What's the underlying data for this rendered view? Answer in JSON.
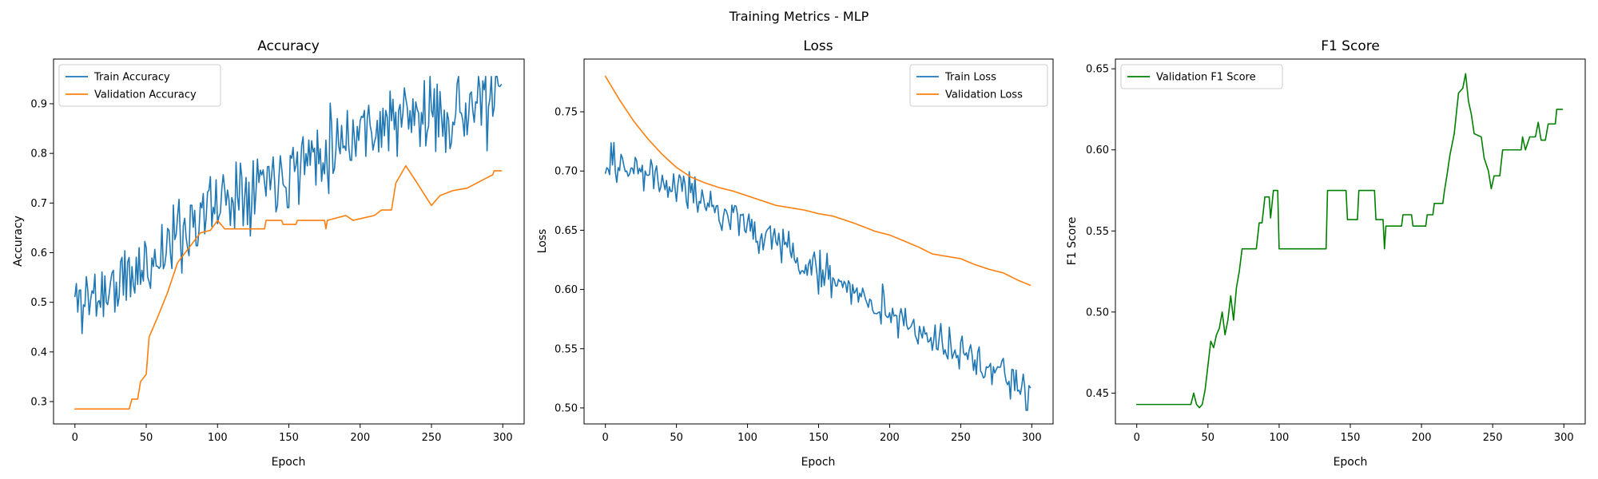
{
  "figure": {
    "suptitle": "Training Metrics - MLP"
  },
  "chart_data": [
    {
      "type": "line",
      "title": "Accuracy",
      "xlabel": "Epoch",
      "ylabel": "Accuracy",
      "xlim": [
        -15,
        315
      ],
      "ylim": [
        0.255,
        0.99
      ],
      "xticks": [
        0,
        50,
        100,
        150,
        200,
        250,
        300
      ],
      "yticks": [
        0.3,
        0.4,
        0.5,
        0.6,
        0.7,
        0.8,
        0.9
      ],
      "ytick_decimals": 1,
      "legend": "top-left",
      "grid": false,
      "series": [
        {
          "name": "Train Accuracy",
          "color": "#1f77b4",
          "noise": 0.055,
          "seed": 11,
          "min": 0.43,
          "max": 0.955,
          "anchors": [
            [
              0,
              0.5
            ],
            [
              20,
              0.52
            ],
            [
              40,
              0.55
            ],
            [
              60,
              0.6
            ],
            [
              80,
              0.66
            ],
            [
              100,
              0.7
            ],
            [
              120,
              0.74
            ],
            [
              150,
              0.77
            ],
            [
              180,
              0.82
            ],
            [
              200,
              0.85
            ],
            [
              230,
              0.87
            ],
            [
              260,
              0.88
            ],
            [
              300,
              0.91
            ]
          ]
        },
        {
          "name": "Validation Accuracy",
          "color": "#ff7f0e",
          "noise": 0,
          "anchors": [
            [
              0,
              0.285
            ],
            [
              38,
              0.285
            ],
            [
              40,
              0.305
            ],
            [
              44,
              0.305
            ],
            [
              46,
              0.34
            ],
            [
              50,
              0.355
            ],
            [
              52,
              0.43
            ],
            [
              58,
              0.47
            ],
            [
              65,
              0.52
            ],
            [
              72,
              0.58
            ],
            [
              80,
              0.61
            ],
            [
              88,
              0.64
            ],
            [
              95,
              0.645
            ],
            [
              100,
              0.665
            ],
            [
              105,
              0.648
            ],
            [
              133,
              0.648
            ],
            [
              134,
              0.665
            ],
            [
              145,
              0.665
            ],
            [
              146,
              0.657
            ],
            [
              155,
              0.657
            ],
            [
              156,
              0.665
            ],
            [
              175,
              0.665
            ],
            [
              176,
              0.648
            ],
            [
              177,
              0.665
            ],
            [
              190,
              0.675
            ],
            [
              195,
              0.665
            ],
            [
              210,
              0.675
            ],
            [
              215,
              0.686
            ],
            [
              222,
              0.686
            ],
            [
              225,
              0.74
            ],
            [
              232,
              0.775
            ],
            [
              240,
              0.74
            ],
            [
              250,
              0.695
            ],
            [
              256,
              0.715
            ],
            [
              265,
              0.725
            ],
            [
              275,
              0.73
            ],
            [
              285,
              0.745
            ],
            [
              293,
              0.757
            ],
            [
              294,
              0.765
            ],
            [
              299,
              0.765
            ]
          ]
        }
      ]
    },
    {
      "type": "line",
      "title": "Loss",
      "xlabel": "Epoch",
      "ylabel": "Loss",
      "xlim": [
        -15,
        315
      ],
      "ylim": [
        0.4865,
        0.7945
      ],
      "xticks": [
        0,
        50,
        100,
        150,
        200,
        250,
        300
      ],
      "yticks": [
        0.5,
        0.55,
        0.6,
        0.65,
        0.7,
        0.75
      ],
      "ytick_decimals": 2,
      "legend": "top-right",
      "grid": false,
      "series": [
        {
          "name": "Train Loss",
          "color": "#1f77b4",
          "noise": 0.012,
          "seed": 29,
          "min": 0.498,
          "max": 0.724,
          "anchors": [
            [
              0,
              0.712
            ],
            [
              25,
              0.7
            ],
            [
              50,
              0.685
            ],
            [
              75,
              0.67
            ],
            [
              100,
              0.655
            ],
            [
              125,
              0.635
            ],
            [
              150,
              0.615
            ],
            [
              175,
              0.6
            ],
            [
              200,
              0.58
            ],
            [
              225,
              0.56
            ],
            [
              250,
              0.545
            ],
            [
              275,
              0.53
            ],
            [
              300,
              0.51
            ]
          ]
        },
        {
          "name": "Validation Loss",
          "color": "#ff7f0e",
          "noise": 0,
          "anchors": [
            [
              0,
              0.78
            ],
            [
              10,
              0.76
            ],
            [
              20,
              0.742
            ],
            [
              30,
              0.727
            ],
            [
              40,
              0.714
            ],
            [
              50,
              0.703
            ],
            [
              60,
              0.695
            ],
            [
              70,
              0.69
            ],
            [
              80,
              0.686
            ],
            [
              90,
              0.683
            ],
            [
              100,
              0.679
            ],
            [
              110,
              0.675
            ],
            [
              120,
              0.671
            ],
            [
              130,
              0.669
            ],
            [
              140,
              0.667
            ],
            [
              150,
              0.664
            ],
            [
              160,
              0.662
            ],
            [
              175,
              0.656
            ],
            [
              190,
              0.649
            ],
            [
              200,
              0.646
            ],
            [
              210,
              0.641
            ],
            [
              220,
              0.636
            ],
            [
              230,
              0.63
            ],
            [
              240,
              0.628
            ],
            [
              250,
              0.626
            ],
            [
              260,
              0.621
            ],
            [
              270,
              0.617
            ],
            [
              280,
              0.614
            ],
            [
              290,
              0.608
            ],
            [
              300,
              0.603
            ]
          ]
        }
      ]
    },
    {
      "type": "line",
      "title": "F1 Score",
      "xlabel": "Epoch",
      "ylabel": "F1 Score",
      "xlim": [
        -15,
        315
      ],
      "ylim": [
        0.431,
        0.656
      ],
      "xticks": [
        0,
        50,
        100,
        150,
        200,
        250,
        300
      ],
      "yticks": [
        0.45,
        0.5,
        0.55,
        0.6,
        0.65
      ],
      "ytick_decimals": 2,
      "legend": "top-left",
      "grid": false,
      "series": [
        {
          "name": "Validation F1 Score",
          "color": "#008000",
          "noise": 0,
          "anchors": [
            [
              0,
              0.443
            ],
            [
              38,
              0.443
            ],
            [
              40,
              0.45
            ],
            [
              42,
              0.443
            ],
            [
              44,
              0.441
            ],
            [
              46,
              0.443
            ],
            [
              48,
              0.452
            ],
            [
              50,
              0.467
            ],
            [
              52,
              0.482
            ],
            [
              54,
              0.478
            ],
            [
              56,
              0.486
            ],
            [
              58,
              0.49
            ],
            [
              60,
              0.5
            ],
            [
              62,
              0.486
            ],
            [
              64,
              0.495
            ],
            [
              66,
              0.51
            ],
            [
              68,
              0.495
            ],
            [
              70,
              0.515
            ],
            [
              72,
              0.525
            ],
            [
              74,
              0.539
            ],
            [
              84,
              0.539
            ],
            [
              86,
              0.555
            ],
            [
              88,
              0.555
            ],
            [
              90,
              0.571
            ],
            [
              93,
              0.571
            ],
            [
              94,
              0.558
            ],
            [
              96,
              0.575
            ],
            [
              99,
              0.575
            ],
            [
              100,
              0.539
            ],
            [
              133,
              0.539
            ],
            [
              134,
              0.575
            ],
            [
              147,
              0.575
            ],
            [
              148,
              0.557
            ],
            [
              155,
              0.557
            ],
            [
              156,
              0.575
            ],
            [
              167,
              0.575
            ],
            [
              168,
              0.557
            ],
            [
              173,
              0.557
            ],
            [
              174,
              0.539
            ],
            [
              175,
              0.553
            ],
            [
              186,
              0.553
            ],
            [
              187,
              0.56
            ],
            [
              193,
              0.56
            ],
            [
              194,
              0.553
            ],
            [
              203,
              0.553
            ],
            [
              204,
              0.56
            ],
            [
              208,
              0.56
            ],
            [
              209,
              0.567
            ],
            [
              215,
              0.567
            ],
            [
              216,
              0.574
            ],
            [
              218,
              0.585
            ],
            [
              220,
              0.597
            ],
            [
              223,
              0.61
            ],
            [
              226,
              0.635
            ],
            [
              229,
              0.638
            ],
            [
              231,
              0.647
            ],
            [
              233,
              0.63
            ],
            [
              235,
              0.622
            ],
            [
              237,
              0.61
            ],
            [
              242,
              0.608
            ],
            [
              244,
              0.595
            ],
            [
              247,
              0.587
            ],
            [
              249,
              0.576
            ],
            [
              251,
              0.584
            ],
            [
              255,
              0.584
            ],
            [
              257,
              0.6
            ],
            [
              270,
              0.6
            ],
            [
              271,
              0.608
            ],
            [
              273,
              0.6
            ],
            [
              276,
              0.608
            ],
            [
              280,
              0.608
            ],
            [
              282,
              0.617
            ],
            [
              284,
              0.606
            ],
            [
              287,
              0.606
            ],
            [
              289,
              0.616
            ],
            [
              294,
              0.616
            ],
            [
              295,
              0.625
            ],
            [
              300,
              0.625
            ]
          ]
        }
      ]
    }
  ]
}
